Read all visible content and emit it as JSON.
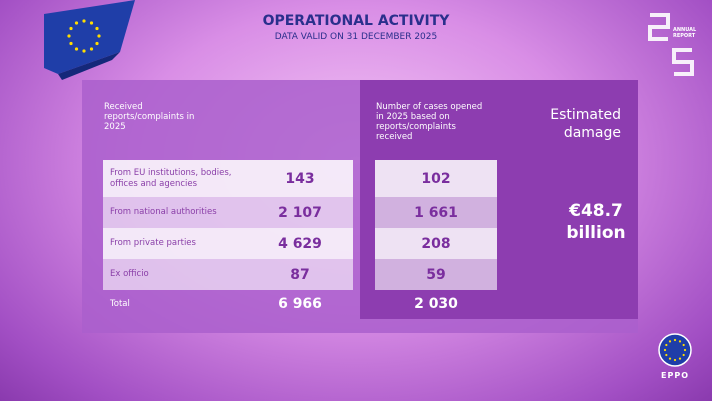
{
  "header": {
    "title": "OPERATIONAL ACTIVITY",
    "subtitle": "DATA VALID ON 31 DECEMBER 2025"
  },
  "badge": {
    "line1": "ANNUAL",
    "line2": "REPORT"
  },
  "table": {
    "received_header": "Received reports/complaints in 2025",
    "cases_header": "Number of cases opened in 2025 based on reports/complaints received",
    "rows": [
      [
        "From EU institutions, bodies, offices and agencies",
        "143",
        "102"
      ],
      [
        "From national authorities",
        "2 107",
        "1 661"
      ],
      [
        "From private parties",
        "4 629",
        "208"
      ],
      [
        "Ex officio",
        "87",
        "59"
      ]
    ],
    "total": [
      "Total",
      "6 966",
      "2 030"
    ]
  },
  "damage": {
    "title": "Estimated damage",
    "amount": "€48.7 billion"
  },
  "logo": "EPPO"
}
